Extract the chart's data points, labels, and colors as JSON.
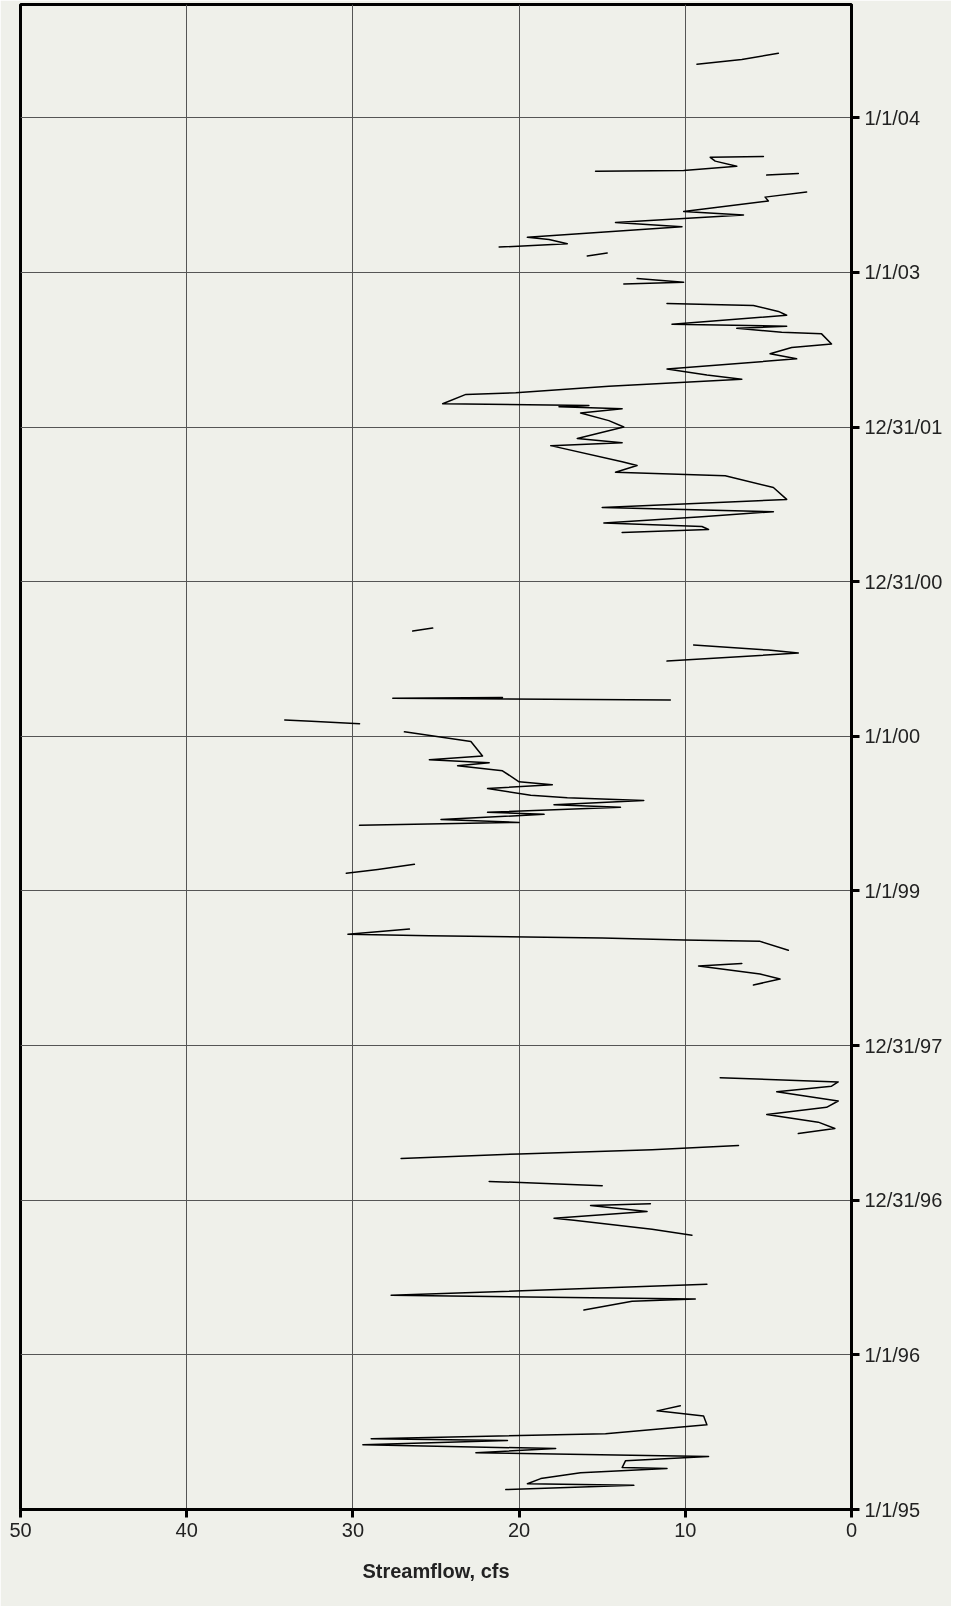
{
  "chart_data": {
    "type": "line",
    "orientation": "horizontal",
    "xlabel": "Streamflow, cfs",
    "ylim": [
      "1995-01-01",
      "2004-09-25"
    ],
    "yticks": [
      {
        "value": "1995-01-01",
        "label": "1/1/95"
      },
      {
        "value": "1996-01-01",
        "label": "1/1/96"
      },
      {
        "value": "1996-12-31",
        "label": "12/31/96"
      },
      {
        "value": "1997-12-31",
        "label": "12/31/97"
      },
      {
        "value": "1999-01-01",
        "label": "1/1/99"
      },
      {
        "value": "2000-01-01",
        "label": "1/1/00"
      },
      {
        "value": "2000-12-31",
        "label": "12/31/00"
      },
      {
        "value": "2001-12-31",
        "label": "12/31/01"
      },
      {
        "value": "2003-01-01",
        "label": "1/1/03"
      },
      {
        "value": "2004-01-01",
        "label": "1/1/04"
      }
    ],
    "xlim": [
      50,
      0
    ],
    "xticks": [
      0,
      10,
      20,
      30,
      40,
      50
    ],
    "grid": true,
    "color": "#000000",
    "x": [
      "1995-02-17",
      "1995-02-27",
      "1995-03-03",
      "1995-03-15",
      "1995-03-29",
      "1995-04-08",
      "1995-04-10",
      "1995-04-26",
      "1995-05-06",
      "1995-05-15",
      "1995-05-25",
      "1995-06-03",
      "1995-06-13",
      "1995-06-17",
      "1995-06-29",
      "1995-07-20",
      "1995-08-10",
      "1995-08-22",
      "1995-09-03",
      "1995-12-01",
      "1996-04-16",
      "1996-05-07",
      "1996-05-12",
      "1996-05-21",
      "1996-06-16",
      "1996-08-01",
      "1996-10-10",
      "1996-10-24",
      "1996-11-14",
      "1996-11-19",
      "1996-12-05",
      "1996-12-19",
      "1996-12-23",
      "1997-01-15",
      "1997-02-04",
      "1997-02-14",
      "1997-03-10",
      "1997-04-09",
      "1997-04-20",
      "1997-04-30",
      "1997-05-10",
      "1997-05-25",
      "1997-06-07",
      "1997-06-19",
      "1997-07-04",
      "1997-07-22",
      "1997-08-08",
      "1997-08-23",
      "1997-09-14",
      "1997-09-27",
      "1997-10-07",
      "1997-10-17",
      "1998-02-01",
      "1998-05-24",
      "1998-06-07",
      "1998-06-19",
      "1998-07-08",
      "1998-07-14",
      "1998-07-30",
      "1998-08-14",
      "1998-09-04",
      "1998-09-07",
      "1998-09-12",
      "1998-09-17",
      "1998-09-21",
      "1998-10-03",
      "1998-12-15",
      "1999-02-12",
      "1999-02-21",
      "1999-03-05",
      "1999-04-20",
      "1999-06-05",
      "1999-06-12",
      "1999-06-19",
      "1999-07-01",
      "1999-07-06",
      "1999-07-18",
      "1999-07-24",
      "1999-08-03",
      "1999-08-09",
      "1999-08-15",
      "1999-08-31",
      "1999-09-09",
      "1999-09-16",
      "1999-10-12",
      "1999-10-24",
      "1999-10-31",
      "1999-11-07",
      "1999-11-16",
      "1999-12-20",
      "2000-01-12",
      "2000-01-22",
      "2000-01-31",
      "2000-02-06",
      "2000-02-09",
      "2000-03-01",
      "2000-03-27",
      "2000-03-31",
      "2000-04-02",
      "2000-05-15",
      "2000-06-27",
      "2000-07-16",
      "2000-07-23",
      "2000-08-04",
      "2000-08-20",
      "2000-09-06",
      "2000-09-13",
      "2001-01-15",
      "2001-04-27",
      "2001-05-04",
      "2001-05-11",
      "2001-05-19",
      "2001-06-03",
      "2001-06-15",
      "2001-06-25",
      "2001-07-14",
      "2001-08-11",
      "2001-09-08",
      "2001-09-16",
      "2001-10-02",
      "2001-10-11",
      "2001-11-18",
      "2001-11-25",
      "2001-12-05",
      "2002-01-01",
      "2002-01-16",
      "2002-02-03",
      "2002-02-13",
      "2002-02-18",
      "2002-02-21",
      "2002-02-25",
      "2002-03-19",
      "2002-03-23",
      "2002-04-07",
      "2002-04-24",
      "2002-05-04",
      "2002-05-18",
      "2002-06-11",
      "2002-06-23",
      "2002-07-08",
      "2002-07-16",
      "2002-08-09",
      "2002-08-13",
      "2002-08-22",
      "2002-08-27",
      "2002-09-01",
      "2002-09-22",
      "2002-10-01",
      "2002-10-15",
      "2002-10-20",
      "2002-11-10",
      "2002-12-05",
      "2002-12-09",
      "2002-12-18",
      "2003-01-20",
      "2003-02-09",
      "2003-02-16",
      "2003-02-24",
      "2003-03-02",
      "2003-03-10",
      "2003-03-20",
      "2003-03-25",
      "2003-04-19",
      "2003-04-29",
      "2003-05-17",
      "2003-05-25",
      "2003-06-19",
      "2003-06-28",
      "2003-07-10",
      "2003-08-01",
      "2003-08-19",
      "2003-08-23",
      "2003-08-26",
      "2003-08-28",
      "2003-08-30",
      "2003-09-09",
      "2003-09-21",
      "2003-09-30",
      "2003-10-02",
      "2004-02-01",
      "2004-05-07",
      "2004-05-18",
      "2004-06-02"
    ],
    "values": [
      20.8,
      13.1,
      19.5,
      18.7,
      16.3,
      11.1,
      13.8,
      13.6,
      8.6,
      22.6,
      17.8,
      29.4,
      20.7,
      28.9,
      14.8,
      8.7,
      8.9,
      11.7,
      10.3,
      null,
      16.1,
      13.2,
      9.4,
      27.7,
      8.7,
      null,
      9.6,
      12.0,
      16.7,
      17.9,
      12.3,
      15.7,
      12.1,
      null,
      15.0,
      21.8,
      null,
      27.1,
      20.0,
      12.0,
      6.8,
      null,
      3.2,
      1.0,
      2.0,
      5.1,
      1.5,
      0.8,
      4.5,
      1.2,
      0.8,
      7.9,
      null,
      5.9,
      4.3,
      5.5,
      9.2,
      6.6,
      null,
      3.8,
      5.5,
      10.1,
      15.0,
      25.4,
      30.3,
      26.6,
      null,
      30.4,
      28.5,
      26.3,
      null,
      29.6,
      20.0,
      24.7,
      18.5,
      21.9,
      13.9,
      17.9,
      12.5,
      17.1,
      19.3,
      21.9,
      18.0,
      20.0,
      21.0,
      23.7,
      21.8,
      25.4,
      22.2,
      22.9,
      26.9,
      null,
      29.6,
      32.5,
      34.1,
      null,
      10.9,
      27.6,
      21.0,
      null,
      11.1,
      3.2,
      5.0,
      9.5,
      null,
      26.4,
      25.2,
      null,
      13.8,
      8.6,
      9.0,
      14.9,
      9.0,
      4.7,
      15.0,
      3.9,
      4.7,
      7.6,
      14.2,
      12.9,
      13.8,
      18.1,
      13.8,
      16.5,
      13.7,
      14.6,
      16.3,
      13.8,
      17.6,
      15.8,
      24.6,
      23.2,
      20.2,
      14.6,
      6.6,
      8.7,
      11.1,
      3.3,
      4.9,
      3.6,
      1.2,
      1.8,
      4.2,
      6.9,
      3.9,
      10.8,
      3.9,
      4.4,
      5.9,
      11.1,
      null,
      13.7,
      10.1,
      12.9,
      null,
      15.9,
      14.7,
      null,
      21.2,
      17.1,
      18.2,
      19.5,
      10.2,
      14.2,
      6.5,
      10.1,
      5.0,
      5.2,
      2.7,
      null,
      5.1,
      3.2,
      null,
      15.4,
      10.1,
      6.9,
      8.2,
      8.5,
      5.3,
      null,
      9.3,
      6.6,
      4.4
    ]
  }
}
